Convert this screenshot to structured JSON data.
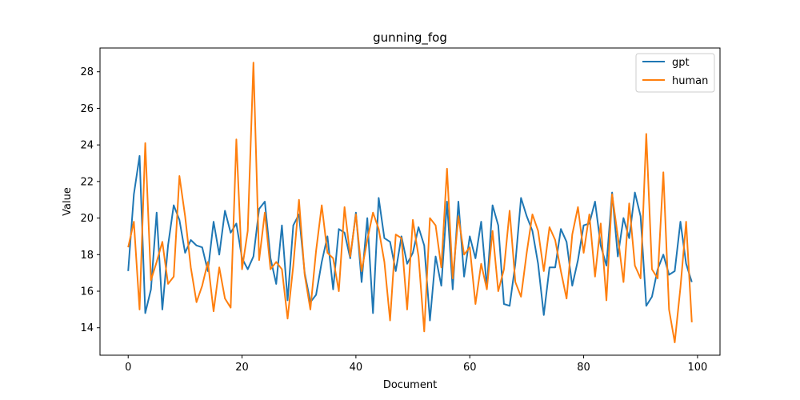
{
  "chart_data": {
    "type": "line",
    "title": "gunning_fog",
    "xlabel": "Document",
    "ylabel": "Value",
    "xlim": [
      -4.95,
      103.95
    ],
    "ylim": [
      12.5,
      29.3
    ],
    "xticks": [
      0,
      20,
      40,
      60,
      80,
      100
    ],
    "yticks": [
      14,
      16,
      18,
      20,
      22,
      24,
      26,
      28
    ],
    "grid": false,
    "legend_position": "top-right",
    "series": [
      {
        "name": "gpt",
        "color": "#1f77b4",
        "values": [
          17.1,
          21.3,
          23.4,
          14.8,
          16.1,
          20.3,
          15.0,
          18.5,
          20.7,
          19.9,
          18.1,
          18.8,
          18.5,
          18.4,
          17.1,
          19.8,
          18.0,
          20.4,
          19.2,
          19.7,
          17.8,
          17.2,
          17.9,
          20.5,
          20.9,
          17.8,
          16.4,
          19.6,
          15.5,
          19.6,
          20.2,
          17.0,
          15.4,
          15.8,
          17.6,
          19.0,
          16.1,
          19.4,
          19.2,
          17.8,
          20.3,
          16.5,
          20.0,
          14.8,
          21.1,
          18.9,
          18.7,
          17.1,
          19.0,
          17.5,
          18.1,
          19.5,
          18.5,
          14.4,
          17.9,
          16.3,
          20.9,
          16.1,
          20.9,
          16.8,
          19.0,
          17.8,
          19.8,
          16.2,
          20.7,
          19.6,
          15.3,
          15.2,
          17.5,
          21.1,
          20.1,
          19.3,
          17.5,
          14.7,
          17.3,
          17.3,
          19.4,
          18.7,
          16.3,
          17.7,
          19.6,
          19.7,
          20.9,
          18.5,
          17.4,
          21.4,
          17.9,
          20.0,
          18.9,
          21.4,
          20.1,
          15.2,
          15.7,
          17.2,
          18.0,
          16.9,
          17.1,
          19.8,
          17.5,
          16.5
        ]
      },
      {
        "name": "human",
        "color": "#ff7f0e",
        "values": [
          18.4,
          19.8,
          15.0,
          24.1,
          16.6,
          17.6,
          18.7,
          16.4,
          16.8,
          22.3,
          20.1,
          17.3,
          15.4,
          16.3,
          17.6,
          14.9,
          17.3,
          15.6,
          15.1,
          24.3,
          17.2,
          19.3,
          28.5,
          17.7,
          20.3,
          17.2,
          17.6,
          17.2,
          14.5,
          17.4,
          21.0,
          16.9,
          15.0,
          18.2,
          20.7,
          18.1,
          17.8,
          16.0,
          20.6,
          17.9,
          20.2,
          17.1,
          18.8,
          20.3,
          19.4,
          17.6,
          14.4,
          19.1,
          18.9,
          15.0,
          19.9,
          17.9,
          13.8,
          20.0,
          19.6,
          17.3,
          22.7,
          16.7,
          20.1,
          18.0,
          18.4,
          15.3,
          17.5,
          16.1,
          19.3,
          16.0,
          17.2,
          20.4,
          16.5,
          15.7,
          18.1,
          20.2,
          19.3,
          17.1,
          19.5,
          18.8,
          17.1,
          15.6,
          19.1,
          20.6,
          18.1,
          20.2,
          16.8,
          19.7,
          15.5,
          21.3,
          19.0,
          16.5,
          20.8,
          17.4,
          16.7,
          24.6,
          17.2,
          16.7,
          22.5,
          15.0,
          13.2,
          16.2,
          19.8,
          14.3
        ]
      }
    ]
  }
}
